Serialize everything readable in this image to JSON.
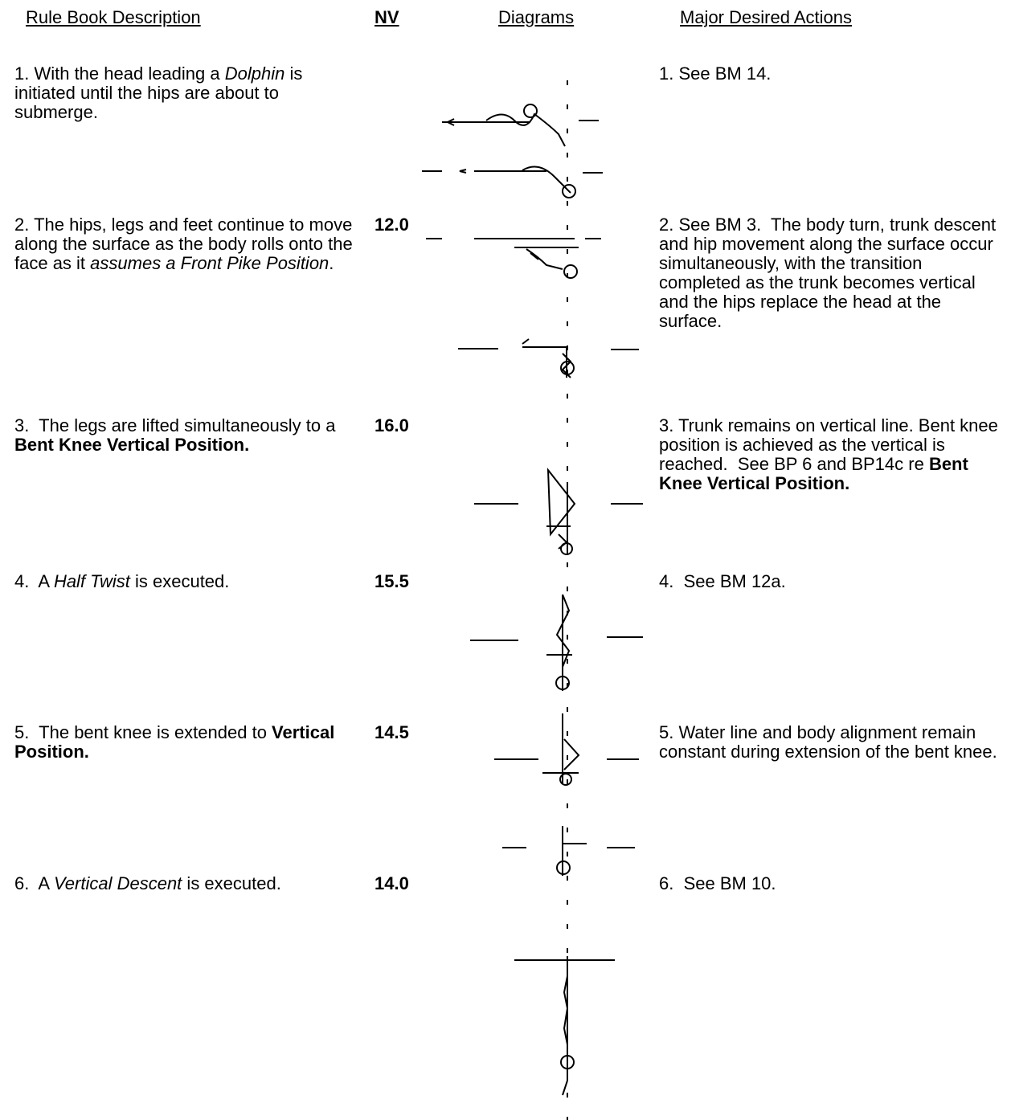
{
  "header": {
    "description": "Rule Book Description",
    "nv": "NV",
    "diagrams": "Diagrams",
    "actions": "Major Desired Actions"
  },
  "rows": [
    {
      "description": [
        {
          "text": "1. With the head leading a "
        },
        {
          "text": "Dolphin",
          "style": "italic"
        },
        {
          "text": " is initiated until the hips are about to submerge."
        }
      ],
      "actions": [
        {
          "text": "1. See BM 14."
        }
      ]
    },
    {
      "description": [
        {
          "text": "2. The hips, legs and feet continue to move along the surface as the body rolls onto the face as it "
        },
        {
          "text": "assumes a Front Pike Position",
          "style": "italic"
        },
        {
          "text": "."
        }
      ],
      "nv": "12.0",
      "actions": [
        {
          "text": "2. See BM 3.  The body turn, trunk descent and hip movement along the surface occur simultaneously, with the transition completed as the trunk becomes vertical and the hips replace the head at the surface."
        }
      ]
    },
    {
      "description": [
        {
          "text": "3.  The legs are lifted simultaneously to a "
        },
        {
          "text": "Bent Knee Vertical Position.",
          "style": "bold"
        }
      ],
      "nv": "16.0",
      "actions": [
        {
          "text": "3. Trunk remains on vertical line. Bent knee position is achieved as the vertical is reached.  See BP 6 and BP14c re "
        },
        {
          "text": "Bent Knee Vertical Position.",
          "style": "bold"
        }
      ]
    },
    {
      "description": [
        {
          "text": "4.  A "
        },
        {
          "text": "Half Twist",
          "style": "italic"
        },
        {
          "text": " is executed."
        }
      ],
      "nv": "15.5",
      "actions": [
        {
          "text": "4.  See BM 12a."
        }
      ]
    },
    {
      "description": [
        {
          "text": "5.  The bent knee is extended to "
        },
        {
          "text": "Vertical Position.",
          "style": "bold"
        }
      ],
      "nv": "14.5",
      "actions": [
        {
          "text": "5. Water line and body alignment remain constant during extension of the bent knee."
        }
      ]
    },
    {
      "description": [
        {
          "text": "6.  A "
        },
        {
          "text": "Vertical Descent",
          "style": "italic"
        },
        {
          "text": " is executed."
        }
      ],
      "nv": "14.0",
      "actions": [
        {
          "text": "6.  See BM 10."
        }
      ]
    }
  ]
}
